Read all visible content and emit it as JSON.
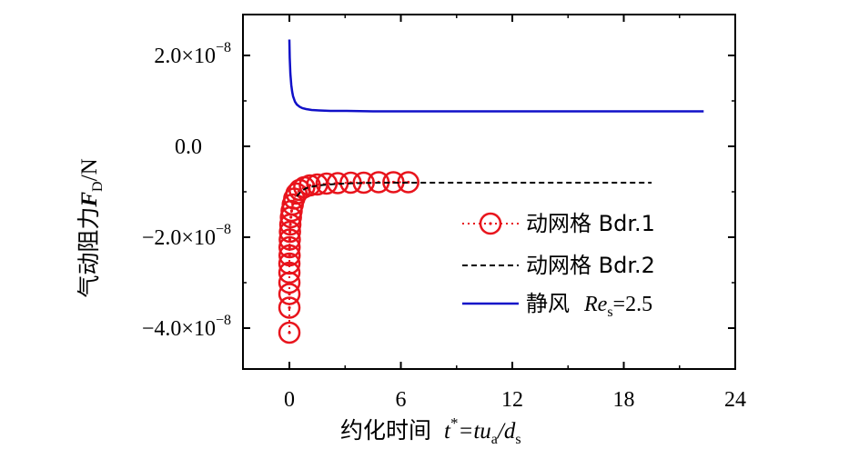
{
  "chart_data": {
    "type": "line",
    "xlabel": {
      "prefix": "约化时间",
      "formula": {
        "var": "t",
        "sup": "*",
        "eq": "=tu",
        "sub1": "a",
        "slash": "/d",
        "sub2": "s"
      }
    },
    "ylabel": {
      "prefix": "气动阻力",
      "var": "F",
      "sub": "D",
      "unit": "/N"
    },
    "xlim": [
      -2.5,
      24
    ],
    "ylim": [
      -4.9e-08,
      2.9e-08
    ],
    "xticks": [
      0,
      6,
      12,
      18,
      24
    ],
    "xtick_labels": [
      "0",
      "6",
      "12",
      "18",
      "24"
    ],
    "yticks": [
      2e-08,
      0.0,
      -2e-08,
      -4e-08
    ],
    "ytick_labels": [
      {
        "mant": "2.0×10",
        "exp": "−8"
      },
      {
        "mant": "0.0",
        "exp": ""
      },
      {
        "mant": "−2.0×10",
        "exp": "−8"
      },
      {
        "mant": "−4.0×10",
        "exp": "−8"
      }
    ],
    "grid": false,
    "legend_position": "right-middle",
    "series": [
      {
        "name": "动网格 Bdr.1",
        "color": "#e8141c",
        "line_style": "dotted",
        "marker": "circle-dot",
        "x": [
          0.0,
          0.0,
          0.0,
          0.0,
          0.0,
          0.0,
          0.01,
          0.01,
          0.02,
          0.03,
          0.05,
          0.08,
          0.12,
          0.18,
          0.26,
          0.38,
          0.55,
          0.8,
          1.1,
          1.5,
          2.0,
          2.6,
          3.3,
          4.0,
          4.8,
          5.6,
          6.4
        ],
        "y": [
          -4.1e-08,
          -3.55e-08,
          -3.25e-08,
          -3e-08,
          -2.78e-08,
          -2.58e-08,
          -2.4e-08,
          -2.22e-08,
          -2.05e-08,
          -1.88e-08,
          -1.72e-08,
          -1.56e-08,
          -1.42e-08,
          -1.28e-08,
          -1.15e-08,
          -1.04e-08,
          -9.6e-09,
          -9e-09,
          -8.6e-09,
          -8.4e-09,
          -8.2e-09,
          -8.1e-09,
          -8e-09,
          -8e-09,
          -7.9e-09,
          -7.9e-09,
          -7.9e-09
        ]
      },
      {
        "name": "动网格 Bdr.2",
        "color": "#000000",
        "line_style": "dashed",
        "marker": "none",
        "x": [
          0.4,
          0.6,
          0.9,
          1.3,
          1.8,
          2.5,
          3.5,
          5.0,
          7.0,
          10.0,
          14.0,
          19.5
        ],
        "y": [
          -1.1e-08,
          -1e-08,
          -9.2e-09,
          -8.8e-09,
          -8.5e-09,
          -8.3e-09,
          -8.1e-09,
          -8e-09,
          -8e-09,
          -8e-09,
          -8e-09,
          -8e-09
        ]
      },
      {
        "name": "静风",
        "name_extra": {
          "var": "Re",
          "sub": "s",
          "eq": "=2.5"
        },
        "color": "#1010c8",
        "line_style": "solid",
        "marker": "none",
        "x": [
          0.0,
          0.02,
          0.05,
          0.1,
          0.15,
          0.2,
          0.3,
          0.4,
          0.55,
          0.7,
          0.9,
          1.2,
          1.6,
          2.2,
          3.0,
          4.5,
          7.0,
          10.0,
          14.0,
          18.0,
          22.3
        ],
        "y": [
          2.35e-08,
          1.95e-08,
          1.6e-08,
          1.35e-08,
          1.2e-08,
          1.1e-08,
          9.8e-09,
          9.2e-09,
          8.7e-09,
          8.4e-09,
          8.2e-09,
          8e-09,
          7.9e-09,
          7.8e-09,
          7.8e-09,
          7.7e-09,
          7.7e-09,
          7.7e-09,
          7.7e-09,
          7.7e-09,
          7.7e-09
        ]
      }
    ]
  }
}
